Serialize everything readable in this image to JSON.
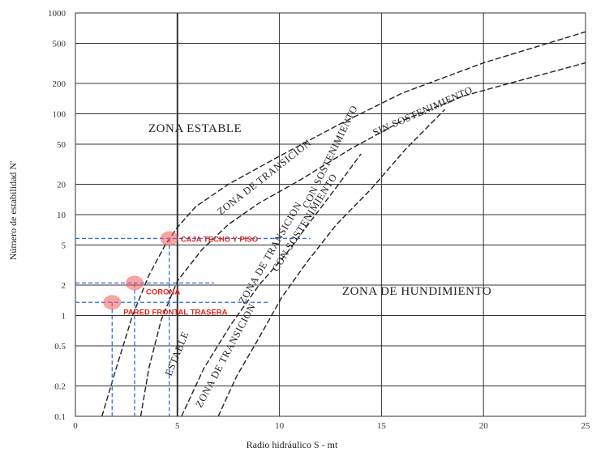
{
  "chart_data": {
    "type": "line",
    "xlabel": "Radio hidráulico S - mt",
    "ylabel": "Número de estabilidad N'",
    "xlim": [
      0,
      25
    ],
    "ylim": [
      0.1,
      1000
    ],
    "y_scale": "log",
    "x_ticks": [
      "0",
      "5",
      "10",
      "15",
      "20",
      "25"
    ],
    "y_ticks": [
      "0.1",
      "0.2",
      "0.5",
      "1",
      "2",
      "5",
      "10",
      "20",
      "50",
      "100",
      "200",
      "500",
      "1000"
    ],
    "grid": true,
    "series": [
      {
        "x": [
          1.3,
          2.0,
          2.8,
          3.6,
          4.4,
          5.0,
          5.9,
          7.5,
          10.0,
          13.0,
          16.0,
          20.0,
          25.0
        ],
        "y": [
          0.1,
          0.3,
          1.0,
          2.5,
          5.0,
          7.5,
          12.0,
          20.0,
          38.0,
          80.0,
          160.0,
          320.0,
          650.0
        ]
      },
      {
        "x": [
          3.2,
          3.6,
          4.2,
          5.0,
          6.2,
          7.5,
          9.0,
          11.0,
          13.5,
          16.0,
          19.0,
          22.0,
          25.0
        ],
        "y": [
          0.1,
          0.3,
          0.9,
          2.2,
          4.5,
          8.0,
          13.0,
          22.0,
          45.0,
          85.0,
          150.0,
          220.0,
          320.0
        ]
      },
      {
        "x": [
          5.2,
          6.3,
          7.6,
          9.0,
          10.3,
          11.6,
          12.9,
          14.0
        ],
        "y": [
          0.1,
          0.3,
          0.8,
          2.0,
          4.0,
          9.0,
          20.0,
          40.0
        ]
      },
      {
        "x": [
          7.0,
          7.9,
          9.0,
          10.1,
          11.4,
          12.8,
          14.5,
          16.2,
          18.1
        ],
        "y": [
          0.1,
          0.25,
          0.6,
          1.5,
          3.5,
          8.0,
          18.0,
          45.0,
          110.0
        ]
      }
    ],
    "zones": [
      {
        "label": "ZONA ESTABLE"
      },
      {
        "label": "ZONA DE HUNDIMIENTO"
      }
    ],
    "curve_labels": [
      {
        "label": "SIN SOSTENIMIENTO"
      },
      {
        "label": "ZONA DE TRANSICION"
      },
      {
        "label": "ZONA DE TRANSICION"
      },
      {
        "label": "CON SOSTENIMIENTO"
      },
      {
        "label": "CON SOSTENIMIENTO"
      },
      {
        "label": "ESTABLE"
      },
      {
        "label": "ZONA DE TRANSICION"
      }
    ],
    "points": [
      {
        "label": "CAJA TECHO Y PISO",
        "x": 4.6,
        "y": 5.8,
        "color": "#f05a5a"
      },
      {
        "label": "CORONA",
        "x": 2.9,
        "y": 2.1,
        "color": "#f05a5a"
      },
      {
        "label": "PARED FRONTAL TRASERA",
        "x": 1.8,
        "y": 1.35,
        "color": "#f05a5a"
      }
    ],
    "colors": {
      "grid": "#333333",
      "curve": "#222222",
      "guide": "#2f6fd6",
      "point_label": "#e0241c"
    }
  }
}
